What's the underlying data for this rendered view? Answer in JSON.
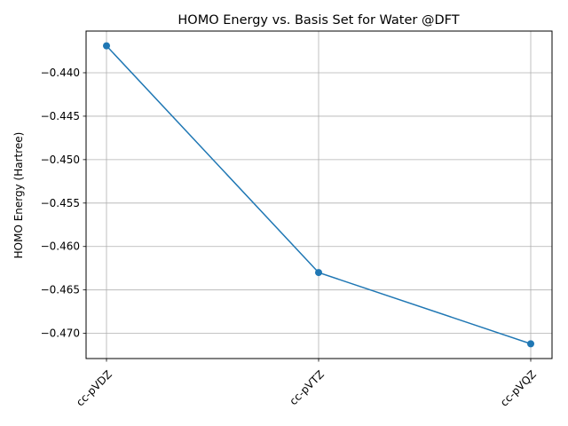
{
  "chart_data": {
    "type": "line",
    "title": "HOMO Energy vs. Basis Set for Water @DFT",
    "xlabel": "",
    "ylabel": "HOMO Energy (Hartree)",
    "categories": [
      "cc-pVDZ",
      "cc-pVTZ",
      "cc-pVQZ"
    ],
    "series": [
      {
        "values": [
          -0.4369,
          -0.463,
          -0.4712
        ]
      }
    ],
    "ylim": [
      -0.4729,
      -0.4352
    ],
    "yticks": [
      -0.44,
      -0.445,
      -0.45,
      -0.455,
      -0.46,
      -0.465,
      -0.47
    ],
    "ytick_labels": [
      "−0.440",
      "−0.445",
      "−0.450",
      "−0.455",
      "−0.460",
      "−0.465",
      "−0.470"
    ],
    "grid": true,
    "line_color": "#1f77b4",
    "marker": "circle"
  }
}
